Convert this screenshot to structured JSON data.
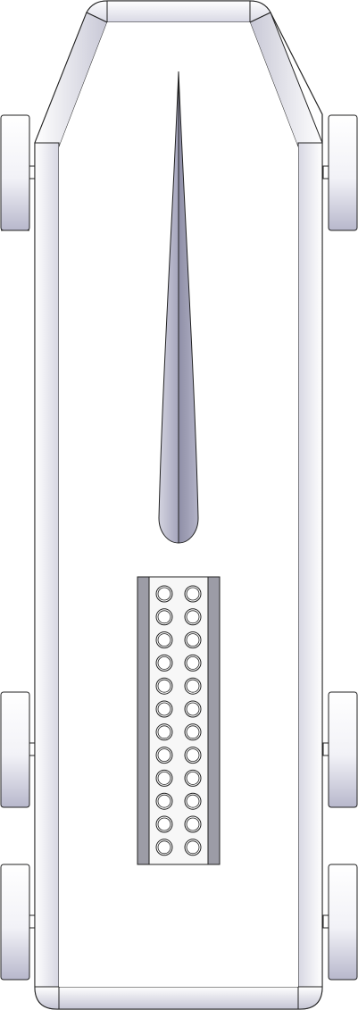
{
  "diagram": {
    "subject": "vehicle-top-view",
    "colors": {
      "outline": "#222222",
      "panel_light": "#ffffff",
      "panel_shade": "#c9c9d8",
      "wheel_shade": "#b8b8cc",
      "fin_fill": "#b4b4c6",
      "fin_dark": "#8e8ea6",
      "grille_side": "#9c9ca6",
      "grille_bg": "#f7f7f7",
      "hole_fill": "#ffffff"
    },
    "wheels": [
      {
        "name": "wheel-front-left"
      },
      {
        "name": "wheel-front-right"
      },
      {
        "name": "wheel-mid-left"
      },
      {
        "name": "wheel-mid-right"
      },
      {
        "name": "wheel-rear-left"
      },
      {
        "name": "wheel-rear-right"
      }
    ],
    "grille": {
      "rows": 12,
      "columns": 2
    }
  }
}
